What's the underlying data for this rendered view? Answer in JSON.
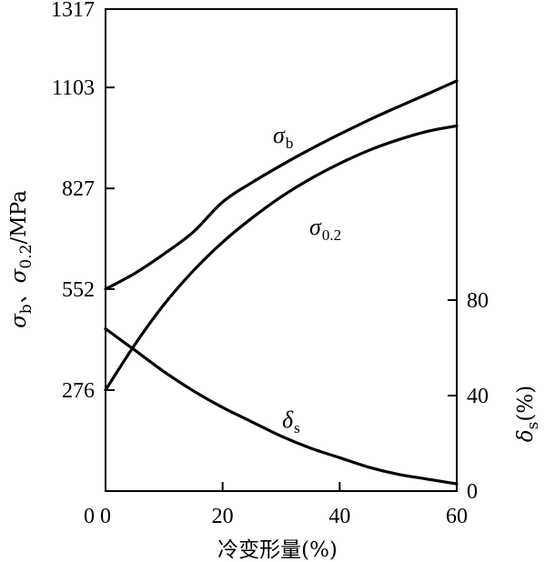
{
  "chart_data": {
    "type": "line",
    "x_ticks": [
      0,
      20,
      40,
      60
    ],
    "xlim": [
      0,
      60
    ],
    "xlabel": "冷变形量(%)",
    "y_left": {
      "ticks": [
        0,
        276,
        552,
        827,
        1103,
        1317
      ],
      "tick_labels": [
        "",
        "276",
        "552",
        "827",
        "1103",
        "1317"
      ],
      "lim": [
        0,
        1317
      ],
      "label_parts": [
        "σ",
        "b",
        "、σ",
        "0.2",
        "/MPa"
      ]
    },
    "y_right": {
      "ticks": [
        0,
        40,
        80
      ],
      "tick_labels": [
        "0",
        "40",
        "80"
      ],
      "lim": [
        0,
        200
      ],
      "label_parts": [
        "δ",
        "s",
        "(%)"
      ]
    },
    "series": [
      {
        "name": "σb",
        "label_main": "σ",
        "label_sub": "b",
        "axis": "left",
        "x": [
          0,
          5,
          10,
          15,
          20,
          25,
          30,
          35,
          40,
          45,
          50,
          55,
          60
        ],
        "y": [
          552,
          595,
          648,
          708,
          790,
          843,
          890,
          934,
          975,
          1014,
          1050,
          1085,
          1121
        ]
      },
      {
        "name": "σ0.2",
        "label_main": "σ",
        "label_sub": "0.2",
        "axis": "left",
        "x": [
          0,
          5,
          10,
          15,
          20,
          25,
          30,
          35,
          40,
          45,
          50,
          55,
          60
        ],
        "y": [
          276,
          400,
          510,
          602,
          680,
          746,
          804,
          853,
          895,
          931,
          960,
          983,
          998
        ]
      },
      {
        "name": "δs",
        "label_main": "δ",
        "label_sub": "s",
        "axis": "right",
        "x": [
          0,
          5,
          10,
          15,
          20,
          25,
          30,
          35,
          40,
          45,
          50,
          55,
          60
        ],
        "y": [
          68,
          59,
          50,
          42,
          35,
          29,
          23,
          18,
          14,
          10,
          7,
          5,
          3
        ]
      }
    ],
    "grid": false,
    "legend": "none"
  }
}
